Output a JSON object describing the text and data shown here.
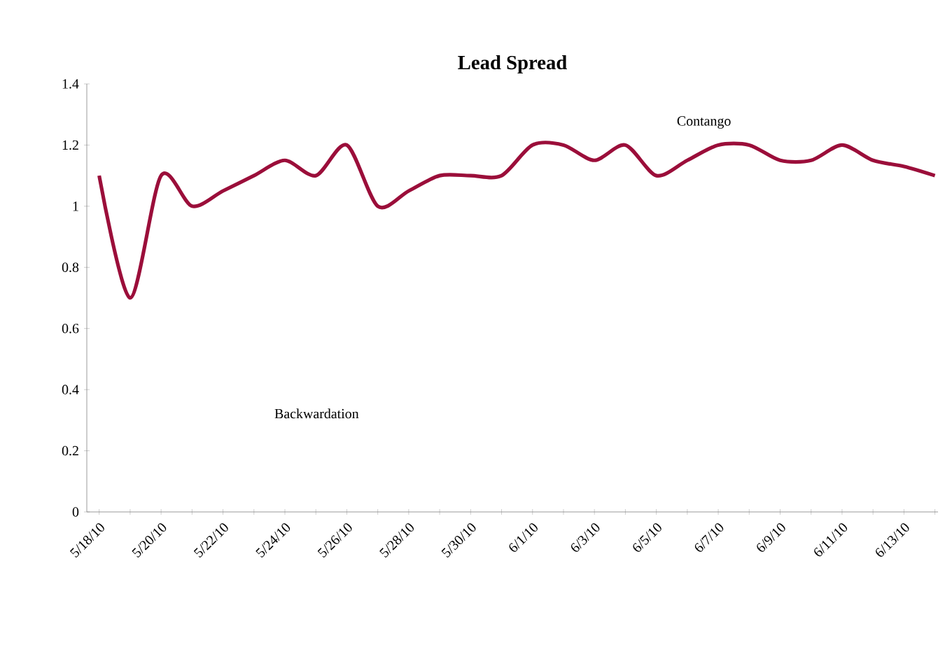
{
  "chart_data": {
    "type": "line",
    "title": "Lead Spread",
    "categories": [
      "5/18/10",
      null,
      "5/20/10",
      null,
      "5/22/10",
      null,
      "5/24/10",
      null,
      "5/26/10",
      null,
      "5/28/10",
      null,
      "5/30/10",
      null,
      "6/1/10",
      null,
      "6/3/10",
      null,
      "6/5/10",
      null,
      "6/7/10",
      null,
      "6/9/10",
      null,
      "6/11/10",
      null,
      "6/13/10",
      null
    ],
    "values": [
      1.1,
      0.7,
      1.1,
      1.0,
      1.05,
      1.1,
      1.15,
      1.1,
      1.2,
      1.0,
      1.05,
      1.1,
      1.1,
      1.1,
      1.2,
      1.2,
      1.15,
      1.2,
      1.1,
      1.15,
      1.2,
      1.2,
      1.15,
      1.15,
      1.2,
      1.15,
      1.13,
      1.1
    ],
    "color": "#9b0e3a",
    "marker": "none",
    "line_style": "solid",
    "ylim": [
      0,
      1.4
    ],
    "yticks": [
      0,
      0.2,
      0.4,
      0.6,
      0.8,
      1,
      1.2,
      1.4
    ],
    "annotations": [
      "Contango",
      "Backwardation"
    ]
  }
}
